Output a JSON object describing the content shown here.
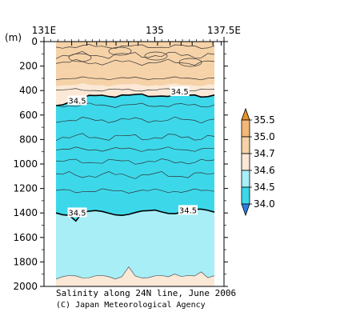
{
  "chart_data": {
    "type": "contour",
    "title": "Salinity along 24N line, June 2006",
    "credit": "(C) Japan Meteorological Agency",
    "x_axis": {
      "ticks": [
        "131E",
        "135",
        "137.5E"
      ],
      "tick_values": [
        131,
        135,
        137.5
      ],
      "position": "top",
      "station_ticks": [
        131.0,
        132.0,
        132.55,
        132.9,
        133.25,
        133.6,
        134.05,
        134.4,
        135.1,
        135.55,
        135.95,
        136.35,
        137.1,
        137.4
      ]
    },
    "y_axis": {
      "unit_label": "(m)",
      "ticks": [
        "0",
        "200",
        "400",
        "600",
        "800",
        "1000",
        "1200",
        "1400",
        "1600",
        "1800",
        "2000"
      ],
      "tick_values": [
        0,
        200,
        400,
        600,
        800,
        1000,
        1200,
        1400,
        1600,
        1800,
        2000
      ],
      "range": [
        0,
        2000
      ],
      "inverted": true
    },
    "colorbar": {
      "levels": [
        "35.5",
        "35.0",
        "34.7",
        "34.6",
        "34.5",
        "34.0"
      ],
      "bands": [
        {
          "range": "> 35.5",
          "color": "#e8922a"
        },
        {
          "range": "35.0 - 35.5",
          "color": "#f2b878"
        },
        {
          "range": "34.7 - 35.0",
          "color": "#f6d2a8"
        },
        {
          "range": "34.6 - 34.7",
          "color": "#fbe8d6"
        },
        {
          "range": "34.5 - 34.6",
          "color": "#a8eef6"
        },
        {
          "range": "34.0 - 34.5",
          "color": "#3cd8ea"
        },
        {
          "range": "< 34.0",
          "color": "#2a80e0"
        }
      ]
    },
    "contour_labels": [
      {
        "text": "34.5",
        "x": 132.2,
        "depth": 480
      },
      {
        "text": "34.5",
        "x": 135.9,
        "depth": 405
      },
      {
        "text": "34.5",
        "x": 132.2,
        "depth": 1395
      },
      {
        "text": "34.5",
        "x": 136.2,
        "depth": 1375
      }
    ],
    "bold_contour_value": "34.5",
    "bottom_depth_label": "2000"
  }
}
